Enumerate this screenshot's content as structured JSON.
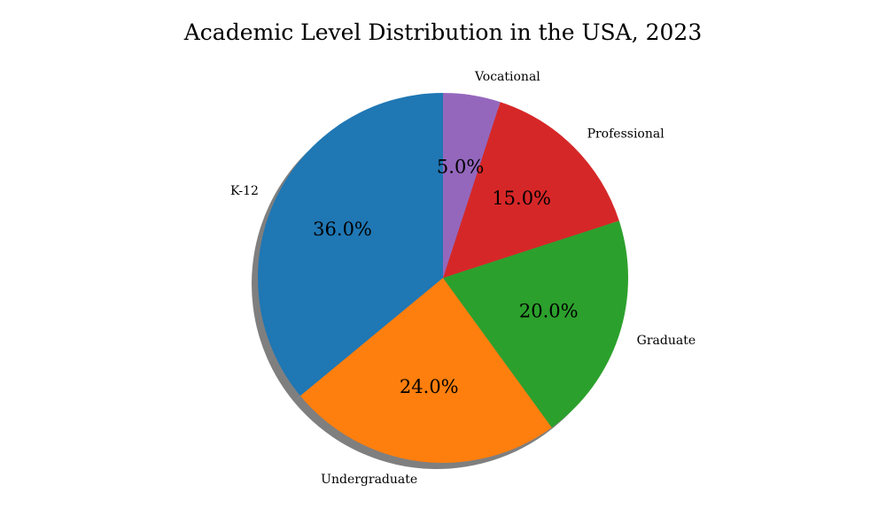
{
  "chart_data": {
    "type": "pie",
    "title": "Academic Level Distribution in the USA, 2023",
    "categories": [
      "K-12",
      "Undergraduate",
      "Graduate",
      "Professional",
      "Vocational"
    ],
    "values": [
      36.0,
      24.0,
      20.0,
      15.0,
      5.0
    ],
    "value_labels": [
      "36.0%",
      "24.0%",
      "20.0%",
      "15.0%",
      "5.0%"
    ],
    "colors": [
      "#1f77b4",
      "#ff7f0e",
      "#2ca02c",
      "#d62728",
      "#9467bd"
    ],
    "start_angle_deg": 90,
    "direction": "counterclockwise",
    "shadow": true,
    "legend": "none"
  }
}
